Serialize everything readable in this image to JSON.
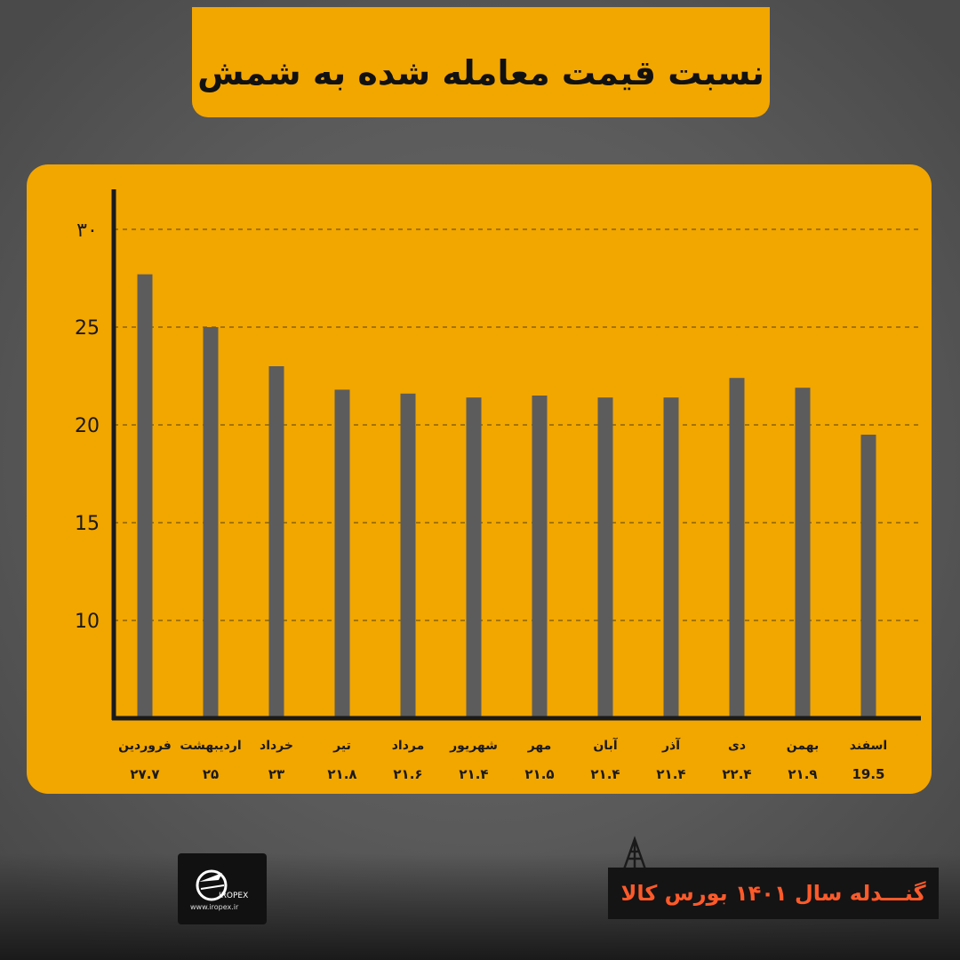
{
  "title": "نسبت قیمت معامله شده به شمش",
  "footer": {
    "caption": "گنـــدله سال ۱۴۰۱ بورس کالا",
    "logo_name": "IROPEX",
    "logo_url": "www.iropex.ir"
  },
  "colors": {
    "accent": "#f2a600",
    "bar": "#5c5c5c",
    "axis": "#1a1a1a",
    "grid": "#8a6400",
    "footer_text": "#ff5a2a"
  },
  "chart_data": {
    "type": "bar",
    "title": "نسبت قیمت معامله شده به شمش",
    "xlabel": "",
    "ylabel": "",
    "categories": [
      "فروردین",
      "اردیبهشت",
      "خرداد",
      "تیر",
      "مرداد",
      "شهریور",
      "مهر",
      "آبان",
      "آذر",
      "دی",
      "بهمن",
      "اسفند"
    ],
    "value_labels": [
      "۲۷.۷",
      "۲۵",
      "۲۳",
      "۲۱.۸",
      "۲۱.۶",
      "۲۱.۴",
      "۲۱.۵",
      "۲۱.۴",
      "۲۱.۴",
      "۲۲.۴",
      "۲۱.۹",
      "19.5"
    ],
    "values": [
      27.7,
      25,
      23,
      21.8,
      21.6,
      21.4,
      21.5,
      21.4,
      21.4,
      22.4,
      21.9,
      19.5
    ],
    "yticks": [
      10,
      15,
      20,
      25,
      30
    ],
    "ytick_labels": [
      "10",
      "15",
      "20",
      "25",
      "۳۰"
    ],
    "ylim": [
      5,
      30
    ],
    "grid": true,
    "legend": "none"
  }
}
